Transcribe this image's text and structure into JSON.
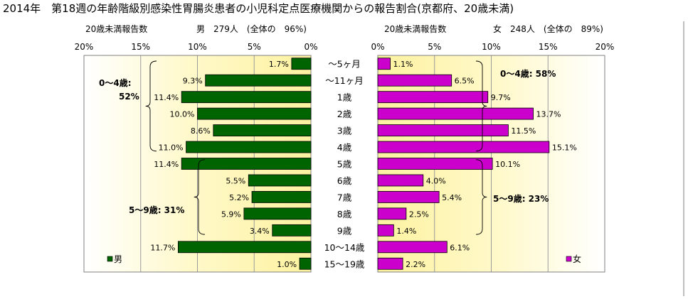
{
  "chart_data": {
    "type": "bar",
    "title": "2014年　第18週の年齢階級別感染性胃腸炎患者の小児科定点医療機関からの報告割合(京都府、20歳未満)",
    "categories": [
      "～5ヶ月",
      "～11ヶ月",
      "1歳",
      "2歳",
      "3歳",
      "4歳",
      "5歳",
      "6歳",
      "7歳",
      "8歳",
      "9歳",
      "10～14歳",
      "15～19歳"
    ],
    "ticks": [
      "20%",
      "15%",
      "10%",
      "5%",
      "0%"
    ],
    "ticks_right": [
      "0%",
      "5%",
      "10%",
      "15%",
      "20%"
    ],
    "xlim": [
      0,
      20
    ],
    "male": {
      "name": "男",
      "header_left": "20歳未満報告数",
      "header_right": "男　279人　(全体の　96%)",
      "values": [
        1.7,
        9.3,
        11.4,
        10.0,
        8.6,
        11.0,
        11.4,
        5.5,
        5.2,
        5.9,
        3.4,
        11.7,
        1.0
      ],
      "labels": [
        "1.7%",
        "9.3%",
        "11.4%",
        "10.0%",
        "8.6%",
        "11.0%",
        "11.4%",
        "5.5%",
        "5.2%",
        "5.9%",
        "3.4%",
        "11.7%",
        "1.0%"
      ],
      "color": "#006400",
      "groups": [
        {
          "line1": "0～4歳:",
          "line2": "52%"
        },
        {
          "line1": "5～9歳: 31%",
          "line2": ""
        }
      ]
    },
    "female": {
      "name": "女",
      "header_left": "20歳未満報告数",
      "header_right": "女　248人　(全体の　89%)",
      "values": [
        1.1,
        6.5,
        9.7,
        13.7,
        11.5,
        15.1,
        10.1,
        4.0,
        5.4,
        2.5,
        1.4,
        6.1,
        2.2
      ],
      "labels": [
        "1.1%",
        "6.5%",
        "9.7%",
        "13.7%",
        "11.5%",
        "15.1%",
        "10.1%",
        "4.0%",
        "5.4%",
        "2.5%",
        "1.4%",
        "6.1%",
        "2.2%"
      ],
      "color": "#cc00cc",
      "groups": [
        {
          "line1": "0～4歳: 58%",
          "line2": ""
        },
        {
          "line1": "5～9歳: 23%",
          "line2": ""
        }
      ]
    },
    "grid": true
  }
}
